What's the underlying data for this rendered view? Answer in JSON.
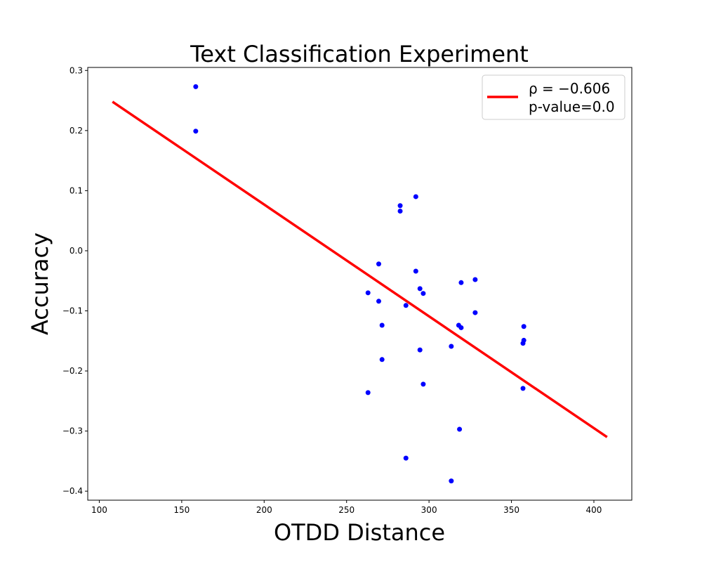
{
  "chart_data": {
    "type": "scatter",
    "title": "Text Classification Experiment",
    "xlabel": "OTDD Distance",
    "ylabel": "Accuracy",
    "xlim": [
      93,
      423
    ],
    "ylim": [
      -0.415,
      0.305
    ],
    "xticks": [
      100,
      150,
      200,
      250,
      300,
      350,
      400
    ],
    "yticks": [
      -0.4,
      -0.3,
      -0.2,
      -0.1,
      0.0,
      0.1,
      0.2,
      0.3
    ],
    "xtick_labels": [
      "100",
      "150",
      "200",
      "250",
      "300",
      "350",
      "400"
    ],
    "ytick_labels": [
      "−0.4",
      "−0.3",
      "−0.2",
      "−0.1",
      "0.0",
      "0.1",
      "0.2",
      "0.3"
    ],
    "grid": false,
    "legend_position": "top-right",
    "colors": {
      "points": "#0000ff",
      "fit_line": "#ff0000"
    },
    "series": [
      {
        "type": "scatter",
        "x": [
          158.5,
          158.5,
          263,
          263,
          269.5,
          269.5,
          271.5,
          271.5,
          282.5,
          282.5,
          286,
          286,
          292,
          292,
          294.5,
          294.5,
          296.5,
          296.5,
          313.5,
          313.5,
          318,
          318.5,
          319.5,
          319.5,
          328,
          328,
          357,
          357,
          357.5,
          357.5
        ],
        "y": [
          0.273,
          0.199,
          -0.07,
          -0.236,
          -0.022,
          -0.084,
          -0.124,
          -0.181,
          0.075,
          0.066,
          -0.091,
          -0.345,
          0.09,
          -0.034,
          -0.063,
          -0.165,
          -0.071,
          -0.222,
          -0.159,
          -0.383,
          -0.124,
          -0.297,
          -0.053,
          -0.128,
          -0.048,
          -0.103,
          -0.154,
          -0.229,
          -0.126,
          -0.149
        ]
      },
      {
        "type": "line",
        "name": "ρ = −0.606\np-value=0.0",
        "x": [
          108,
          408
        ],
        "y": [
          0.248,
          -0.31
        ]
      }
    ],
    "legend": {
      "line1": "ρ = −0.606",
      "line2": "p-value=0.0"
    }
  }
}
